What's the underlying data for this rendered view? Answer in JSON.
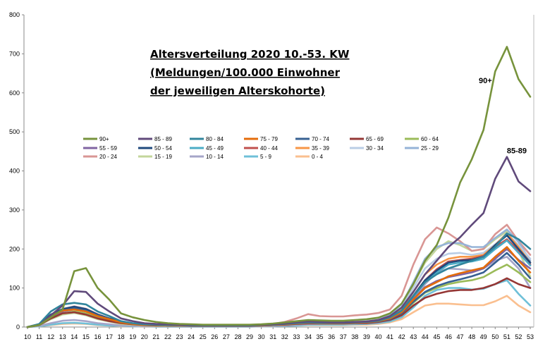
{
  "chart_data": {
    "type": "line",
    "title_lines": [
      "Altersverteilung 2020 10.-53. KW",
      "(Meldungen/100.000 Einwohner",
      "der jeweiligen Alterskohorte)"
    ],
    "xlabel": "",
    "ylabel": "",
    "ylim": [
      0,
      800
    ],
    "yticks": [
      0,
      100,
      200,
      300,
      400,
      500,
      600,
      700,
      800
    ],
    "x": [
      10,
      11,
      12,
      13,
      14,
      15,
      16,
      17,
      18,
      19,
      20,
      21,
      22,
      23,
      24,
      25,
      26,
      27,
      28,
      29,
      30,
      31,
      32,
      33,
      34,
      35,
      36,
      37,
      38,
      39,
      40,
      41,
      42,
      43,
      44,
      45,
      46,
      47,
      48,
      49,
      50,
      51,
      52,
      53
    ],
    "grid": "none",
    "legend_position": "center-left",
    "annotations": [
      {
        "text": "90+",
        "x": 48.6,
        "y": 625
      },
      {
        "text": "85-89",
        "x": 51.0,
        "y": 445
      }
    ],
    "series": [
      {
        "name": "90+",
        "color": "#77933c",
        "values": [
          0,
          5,
          25,
          45,
          143,
          151,
          100,
          70,
          35,
          25,
          18,
          13,
          10,
          8,
          7,
          6,
          6,
          6,
          6,
          6,
          7,
          9,
          12,
          15,
          18,
          17,
          16,
          16,
          18,
          20,
          24,
          35,
          60,
          110,
          170,
          210,
          280,
          370,
          430,
          505,
          655,
          718,
          635,
          590
        ]
      },
      {
        "name": "85 - 89",
        "color": "#604a7b",
        "values": [
          0,
          5,
          30,
          55,
          92,
          90,
          60,
          40,
          22,
          15,
          10,
          8,
          7,
          6,
          5,
          5,
          5,
          5,
          5,
          5,
          6,
          7,
          9,
          12,
          14,
          13,
          12,
          12,
          13,
          14,
          18,
          28,
          50,
          90,
          135,
          170,
          205,
          230,
          262,
          292,
          380,
          436,
          373,
          348
        ]
      },
      {
        "name": "80 - 84",
        "color": "#31859c",
        "values": [
          0,
          8,
          40,
          58,
          62,
          58,
          40,
          28,
          15,
          10,
          7,
          6,
          5,
          5,
          4,
          4,
          4,
          4,
          4,
          4,
          5,
          6,
          8,
          10,
          12,
          11,
          11,
          11,
          12,
          13,
          16,
          25,
          42,
          80,
          115,
          135,
          150,
          160,
          170,
          180,
          205,
          240,
          225,
          200
        ]
      },
      {
        "name": "75 - 79",
        "color": "#e46c0a",
        "values": [
          0,
          6,
          28,
          42,
          45,
          40,
          28,
          20,
          12,
          8,
          6,
          5,
          4,
          4,
          4,
          4,
          4,
          4,
          4,
          4,
          4,
          5,
          7,
          9,
          11,
          10,
          10,
          10,
          11,
          12,
          15,
          22,
          38,
          70,
          100,
          115,
          130,
          138,
          145,
          152,
          180,
          205,
          170,
          140
        ]
      },
      {
        "name": "70 - 74",
        "color": "#376092",
        "values": [
          0,
          6,
          30,
          42,
          48,
          42,
          30,
          20,
          12,
          8,
          6,
          5,
          4,
          4,
          4,
          4,
          4,
          4,
          4,
          4,
          4,
          5,
          7,
          9,
          11,
          10,
          10,
          10,
          11,
          12,
          14,
          20,
          35,
          65,
          90,
          105,
          115,
          122,
          130,
          140,
          165,
          190,
          160,
          125
        ]
      },
      {
        "name": "65 - 69",
        "color": "#953735",
        "values": [
          0,
          5,
          22,
          35,
          38,
          32,
          22,
          15,
          10,
          7,
          5,
          4,
          4,
          4,
          3,
          3,
          3,
          3,
          3,
          3,
          4,
          5,
          6,
          8,
          9,
          9,
          9,
          9,
          10,
          10,
          13,
          18,
          30,
          55,
          75,
          85,
          92,
          95,
          95,
          100,
          110,
          125,
          110,
          100
        ]
      },
      {
        "name": "60 - 64",
        "color": "#9bbb59",
        "values": [
          0,
          5,
          22,
          35,
          40,
          35,
          24,
          17,
          10,
          7,
          5,
          4,
          4,
          4,
          3,
          3,
          3,
          3,
          3,
          3,
          4,
          5,
          6,
          8,
          10,
          9,
          9,
          9,
          10,
          11,
          14,
          20,
          34,
          62,
          88,
          100,
          110,
          116,
          120,
          128,
          145,
          160,
          140,
          115
        ]
      },
      {
        "name": "55 - 59",
        "color": "#8064a2",
        "values": [
          0,
          6,
          26,
          40,
          45,
          40,
          28,
          19,
          11,
          8,
          6,
          5,
          4,
          4,
          4,
          4,
          4,
          4,
          4,
          4,
          4,
          5,
          7,
          9,
          11,
          10,
          10,
          10,
          11,
          12,
          15,
          22,
          38,
          72,
          102,
          118,
          128,
          134,
          140,
          150,
          175,
          200,
          172,
          150
        ]
      },
      {
        "name": "50 - 54",
        "color": "#1f497d",
        "values": [
          0,
          7,
          32,
          46,
          52,
          46,
          32,
          22,
          13,
          9,
          7,
          5,
          4,
          4,
          4,
          4,
          4,
          4,
          4,
          4,
          5,
          6,
          8,
          10,
          12,
          11,
          11,
          11,
          12,
          13,
          17,
          25,
          42,
          80,
          120,
          145,
          165,
          170,
          172,
          180,
          210,
          235,
          200,
          165
        ]
      },
      {
        "name": "45 - 49",
        "color": "#4bacc6",
        "values": [
          0,
          7,
          30,
          45,
          50,
          45,
          31,
          21,
          12,
          8,
          6,
          5,
          4,
          4,
          4,
          4,
          4,
          4,
          4,
          4,
          5,
          6,
          8,
          10,
          12,
          11,
          11,
          11,
          12,
          13,
          16,
          24,
          40,
          78,
          115,
          140,
          160,
          165,
          168,
          175,
          200,
          222,
          190,
          158
        ]
      },
      {
        "name": "40 - 44",
        "color": "#c0504d",
        "values": [
          0,
          7,
          30,
          44,
          48,
          44,
          30,
          20,
          12,
          8,
          6,
          5,
          4,
          4,
          4,
          4,
          4,
          4,
          4,
          4,
          5,
          6,
          8,
          10,
          12,
          11,
          11,
          11,
          12,
          13,
          16,
          24,
          40,
          80,
          120,
          148,
          168,
          172,
          175,
          182,
          205,
          225,
          195,
          160
        ]
      },
      {
        "name": "35 - 39",
        "color": "#f79646",
        "values": [
          0,
          7,
          30,
          44,
          49,
          44,
          30,
          20,
          12,
          8,
          6,
          5,
          4,
          4,
          4,
          4,
          4,
          4,
          4,
          4,
          5,
          6,
          8,
          11,
          13,
          12,
          12,
          12,
          13,
          14,
          18,
          26,
          45,
          90,
          135,
          160,
          175,
          180,
          180,
          185,
          210,
          240,
          205,
          165
        ]
      },
      {
        "name": "30 - 34",
        "color": "#b9cde5",
        "values": [
          0,
          7,
          30,
          45,
          50,
          45,
          31,
          21,
          12,
          8,
          6,
          5,
          4,
          4,
          4,
          4,
          4,
          4,
          4,
          4,
          5,
          6,
          9,
          12,
          14,
          13,
          13,
          13,
          14,
          15,
          19,
          28,
          50,
          100,
          150,
          175,
          188,
          190,
          185,
          190,
          212,
          240,
          210,
          175
        ]
      },
      {
        "name": "25 - 29",
        "color": "#95b3d7",
        "values": [
          0,
          7,
          30,
          46,
          52,
          46,
          32,
          22,
          13,
          9,
          7,
          5,
          4,
          4,
          4,
          4,
          4,
          4,
          4,
          4,
          5,
          7,
          10,
          13,
          16,
          15,
          15,
          15,
          16,
          17,
          21,
          32,
          58,
          115,
          175,
          205,
          215,
          215,
          205,
          205,
          228,
          250,
          218,
          170
        ]
      },
      {
        "name": "20 - 24",
        "color": "#d99694",
        "values": [
          0,
          7,
          30,
          46,
          53,
          47,
          33,
          22,
          13,
          9,
          7,
          5,
          4,
          4,
          4,
          5,
          5,
          5,
          5,
          5,
          6,
          8,
          13,
          22,
          33,
          28,
          27,
          27,
          30,
          32,
          36,
          45,
          80,
          160,
          225,
          255,
          240,
          220,
          195,
          200,
          238,
          262,
          220,
          185
        ]
      },
      {
        "name": "15 - 19",
        "color": "#c3d69b",
        "values": [
          0,
          5,
          20,
          32,
          36,
          30,
          20,
          14,
          8,
          6,
          4,
          3,
          3,
          3,
          3,
          3,
          3,
          3,
          3,
          3,
          4,
          5,
          7,
          10,
          12,
          11,
          11,
          11,
          12,
          14,
          18,
          26,
          50,
          110,
          165,
          200,
          220,
          210,
          195,
          200,
          225,
          245,
          195,
          130
        ]
      },
      {
        "name": "10 - 14",
        "color": "#a5a5c8",
        "values": [
          0,
          3,
          10,
          16,
          18,
          15,
          10,
          7,
          4,
          3,
          2,
          2,
          2,
          2,
          2,
          2,
          2,
          2,
          2,
          2,
          2,
          3,
          4,
          6,
          8,
          8,
          8,
          8,
          9,
          10,
          12,
          18,
          32,
          70,
          110,
          140,
          150,
          148,
          145,
          150,
          170,
          180,
          150,
          100
        ]
      },
      {
        "name": "5 - 9",
        "color": "#6fc0d8",
        "values": [
          0,
          2,
          6,
          10,
          11,
          9,
          6,
          4,
          3,
          2,
          2,
          1,
          1,
          1,
          1,
          1,
          1,
          1,
          1,
          1,
          2,
          2,
          3,
          4,
          6,
          6,
          6,
          6,
          7,
          8,
          10,
          14,
          25,
          50,
          80,
          95,
          100,
          100,
          96,
          98,
          110,
          120,
          85,
          55
        ]
      },
      {
        "name": "0 - 4",
        "color": "#fabf8f",
        "values": [
          0,
          2,
          5,
          8,
          9,
          8,
          5,
          4,
          2,
          2,
          1,
          1,
          1,
          1,
          1,
          1,
          1,
          1,
          1,
          1,
          2,
          2,
          3,
          4,
          5,
          5,
          5,
          5,
          6,
          6,
          8,
          12,
          20,
          38,
          55,
          60,
          60,
          58,
          56,
          56,
          66,
          80,
          55,
          38
        ]
      }
    ]
  }
}
